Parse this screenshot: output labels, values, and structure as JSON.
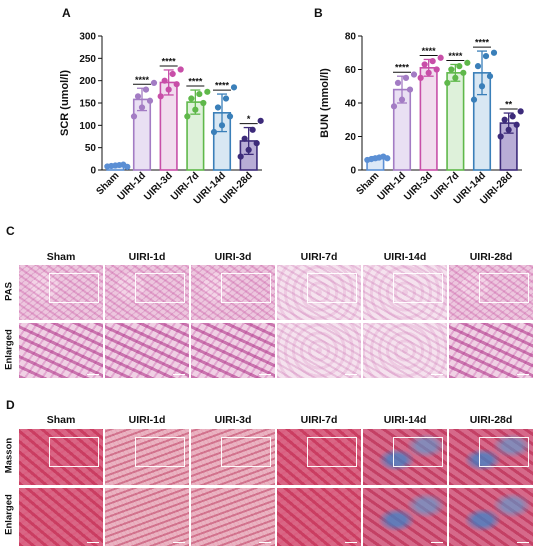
{
  "chart_data": [
    {
      "type": "bar",
      "panel": "A",
      "ylabel": "SCR (umol/l)",
      "ylim": [
        0,
        300
      ],
      "yticks": [
        0,
        50,
        100,
        150,
        200,
        250,
        300
      ],
      "categories": [
        "Sham",
        "UIRI-1d",
        "UIRI-3d",
        "UIRI-7d",
        "UIRI-14d",
        "UIRI-28d"
      ],
      "values": [
        10,
        158,
        196,
        152,
        128,
        65
      ],
      "errors": [
        3,
        25,
        28,
        27,
        42,
        30
      ],
      "significance": [
        "",
        "****",
        "****",
        "****",
        "****",
        "*"
      ],
      "colors": [
        "#5b8fd4",
        "#a37cc4",
        "#c84fa8",
        "#5fb84a",
        "#3a7fb9",
        "#3d2b7a"
      ],
      "fills": [
        "#dce8f7",
        "#e9e0f3",
        "#f1dcee",
        "#def1da",
        "#d8e7f3",
        "#b8add6"
      ],
      "points": [
        [
          8,
          10,
          12,
          9,
          11,
          7
        ],
        [
          120,
          140,
          155,
          165,
          180,
          195
        ],
        [
          165,
          180,
          192,
          200,
          215,
          225
        ],
        [
          120,
          135,
          150,
          160,
          170,
          175
        ],
        [
          85,
          100,
          120,
          140,
          160,
          185
        ],
        [
          30,
          45,
          60,
          70,
          90,
          110
        ]
      ]
    },
    {
      "type": "bar",
      "panel": "B",
      "ylabel": "BUN (mmol/l)",
      "ylim": [
        0,
        80
      ],
      "yticks": [
        0,
        20,
        40,
        60,
        80
      ],
      "categories": [
        "Sham",
        "UIRI-1d",
        "UIRI-3d",
        "UIRI-7d",
        "UIRI-14d",
        "UIRI-28d"
      ],
      "values": [
        7,
        48,
        61,
        58,
        58,
        28
      ],
      "errors": [
        1,
        8,
        5,
        5,
        13,
        6
      ],
      "significance": [
        "",
        "****",
        "****",
        "****",
        "****",
        "**"
      ],
      "colors": [
        "#5b8fd4",
        "#a37cc4",
        "#c84fa8",
        "#5fb84a",
        "#3a7fb9",
        "#3d2b7a"
      ],
      "fills": [
        "#dce8f7",
        "#e9e0f3",
        "#f1dcee",
        "#def1da",
        "#d8e7f3",
        "#b8add6"
      ],
      "points": [
        [
          6,
          7,
          8,
          6.5,
          7.5,
          7
        ],
        [
          38,
          42,
          48,
          52,
          55,
          57
        ],
        [
          55,
          58,
          60,
          63,
          65,
          67
        ],
        [
          52,
          55,
          58,
          60,
          62,
          64
        ],
        [
          42,
          50,
          56,
          62,
          68,
          70
        ],
        [
          20,
          24,
          27,
          30,
          32,
          35
        ]
      ]
    }
  ],
  "panels": {
    "A": "A",
    "B": "B",
    "C": "C",
    "D": "D"
  },
  "histology": {
    "columns": [
      "Sham",
      "UIRI-1d",
      "UIRI-3d",
      "UIRI-7d",
      "UIRI-14d",
      "UIRI-28d"
    ],
    "c_rows": [
      "PAS",
      "Enlarged"
    ],
    "d_rows": [
      "Masson",
      "Enlarged"
    ]
  }
}
